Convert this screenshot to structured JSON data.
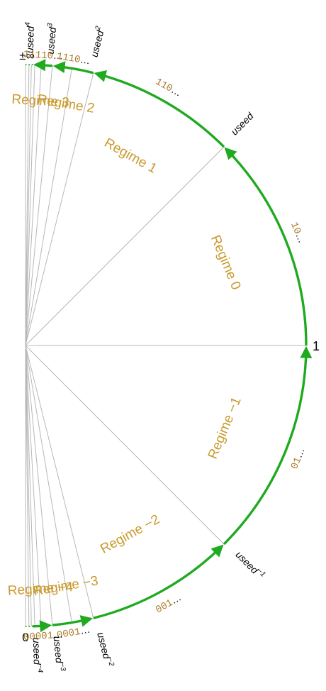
{
  "colors": {
    "arc": "#1faa1f",
    "ray": "#b8b8b8",
    "regime_label": "#c99a2e",
    "bits": "#a97a28",
    "text": "#000000"
  },
  "endpoints": {
    "top": "±∞",
    "one": "1",
    "zero": "0"
  },
  "ticks": [
    {
      "base": "useed",
      "exp": "4",
      "theta": 88.5
    },
    {
      "base": "useed",
      "exp": "3",
      "theta": 84.5
    },
    {
      "base": "useed",
      "exp": "2",
      "theta": 76
    },
    {
      "base": "useed",
      "exp": "",
      "theta": 45
    },
    {
      "base": "useed",
      "exp": "−1",
      "theta": -45
    },
    {
      "base": "useed",
      "exp": "−2",
      "theta": -76
    },
    {
      "base": "useed",
      "exp": "−3",
      "theta": -84.5
    },
    {
      "base": "useed",
      "exp": "−4",
      "theta": -88.5
    }
  ],
  "regimes": [
    {
      "label": "Regime 3",
      "theta": 86.5
    },
    {
      "label": "Regime 2",
      "theta": 80.5
    },
    {
      "label": "Regime 1",
      "theta": 61
    },
    {
      "label": "Regime 0",
      "theta": 22.5
    },
    {
      "label": "Regime −1",
      "theta": -22.5
    },
    {
      "label": "Regime −2",
      "theta": -61
    },
    {
      "label": "Regime −3",
      "theta": -80.5
    },
    {
      "label": "Regime −4",
      "theta": -86.5
    }
  ],
  "bit_patterns": [
    {
      "bits": "11110",
      "theta": 86.5
    },
    {
      "bits": "1110",
      "theta": 80.5
    },
    {
      "bits": "110",
      "theta": 61
    },
    {
      "bits": "10",
      "theta": 22.5
    },
    {
      "bits": "01",
      "theta": -22.5
    },
    {
      "bits": "001",
      "theta": -61
    },
    {
      "bits": "0001",
      "theta": -80.5
    },
    {
      "bits": "00001",
      "theta": -86.5
    }
  ],
  "ellipsis": "…"
}
